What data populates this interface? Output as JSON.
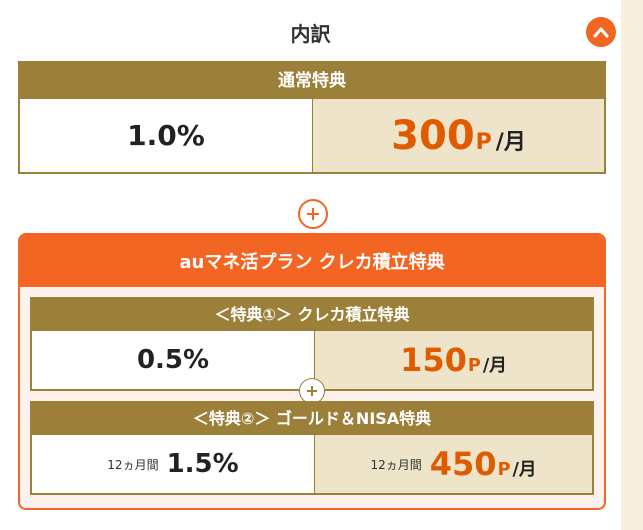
{
  "header": {
    "title": "内訳"
  },
  "standard": {
    "title": "通常特典",
    "rate": "1.0%",
    "points": "300",
    "points_unit": "P",
    "per": "/月"
  },
  "campaign": {
    "title": "auマネ活プラン クレカ積立特典",
    "benefit1": {
      "title": "＜特典①＞ クレカ積立特典",
      "rate": "0.5%",
      "points": "150",
      "points_unit": "P",
      "per": "/月"
    },
    "benefit2": {
      "title": "＜特典②＞ ゴールド＆NISA特典",
      "period_label": "12ヵ月間",
      "rate": "1.5%",
      "period_label_right": "12ヵ月間",
      "points": "450",
      "points_unit": "P",
      "per": "/月"
    }
  },
  "colors": {
    "accent": "#f26522",
    "gold": "#9c8039",
    "cream": "#ede4c9",
    "points_text": "#e05a00"
  },
  "icons": {
    "toggle": "chevron-up-icon",
    "plus": "plus-circle-icon"
  }
}
